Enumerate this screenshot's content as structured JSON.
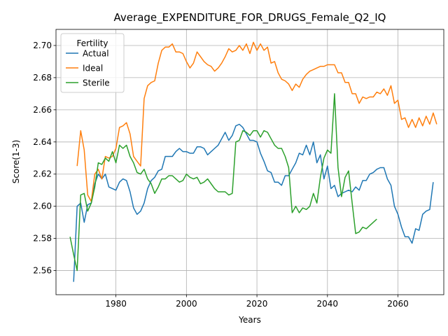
{
  "chart_data": {
    "type": "line",
    "title": "Average_EXPENDITURE_FOR_DRUGS_Female_Q2_IQ",
    "xlabel": "Years",
    "ylabel": "Score(1-3)",
    "xlim": [
      1963,
      2073
    ],
    "ylim": [
      2.545,
      2.71
    ],
    "x_ticks": [
      1980,
      2000,
      2020,
      2040,
      2060
    ],
    "y_ticks": [
      2.56,
      2.58,
      2.6,
      2.62,
      2.64,
      2.66,
      2.68,
      2.7
    ],
    "grid": true,
    "legend": {
      "title": "Fertility",
      "placement": "upper-left"
    },
    "series": [
      {
        "name": "Actual",
        "color": "#1f77b4",
        "points": [
          [
            1968,
            2.553
          ],
          [
            1969,
            2.6
          ],
          [
            1970,
            2.602
          ],
          [
            1971,
            2.59
          ],
          [
            1972,
            2.601
          ],
          [
            1973,
            2.602
          ],
          [
            1974,
            2.614
          ],
          [
            1975,
            2.62
          ],
          [
            1976,
            2.617
          ],
          [
            1977,
            2.62
          ],
          [
            1978,
            2.612
          ],
          [
            1979,
            2.611
          ],
          [
            1980,
            2.61
          ],
          [
            1981,
            2.615
          ],
          [
            1982,
            2.617
          ],
          [
            1983,
            2.616
          ],
          [
            1984,
            2.609
          ],
          [
            1985,
            2.599
          ],
          [
            1986,
            2.595
          ],
          [
            1987,
            2.597
          ],
          [
            1988,
            2.602
          ],
          [
            1989,
            2.611
          ],
          [
            1990,
            2.616
          ],
          [
            1991,
            2.618
          ],
          [
            1992,
            2.622
          ],
          [
            1993,
            2.623
          ],
          [
            1994,
            2.631
          ],
          [
            1995,
            2.631
          ],
          [
            1996,
            2.631
          ],
          [
            1997,
            2.634
          ],
          [
            1998,
            2.636
          ],
          [
            1999,
            2.634
          ],
          [
            2000,
            2.634
          ],
          [
            2001,
            2.633
          ],
          [
            2002,
            2.633
          ],
          [
            2003,
            2.637
          ],
          [
            2004,
            2.637
          ],
          [
            2005,
            2.636
          ],
          [
            2006,
            2.632
          ],
          [
            2007,
            2.634
          ],
          [
            2008,
            2.636
          ],
          [
            2009,
            2.638
          ],
          [
            2010,
            2.642
          ],
          [
            2011,
            2.646
          ],
          [
            2012,
            2.641
          ],
          [
            2013,
            2.644
          ],
          [
            2014,
            2.65
          ],
          [
            2015,
            2.651
          ],
          [
            2016,
            2.649
          ],
          [
            2017,
            2.645
          ],
          [
            2018,
            2.641
          ],
          [
            2019,
            2.641
          ],
          [
            2020,
            2.64
          ],
          [
            2021,
            2.633
          ],
          [
            2022,
            2.628
          ],
          [
            2023,
            2.622
          ],
          [
            2024,
            2.621
          ],
          [
            2025,
            2.615
          ],
          [
            2026,
            2.615
          ],
          [
            2027,
            2.613
          ],
          [
            2028,
            2.619
          ],
          [
            2029,
            2.619
          ],
          [
            2030,
            2.623
          ],
          [
            2031,
            2.627
          ],
          [
            2032,
            2.633
          ],
          [
            2033,
            2.632
          ],
          [
            2034,
            2.638
          ],
          [
            2035,
            2.632
          ],
          [
            2036,
            2.64
          ],
          [
            2037,
            2.627
          ],
          [
            2038,
            2.632
          ],
          [
            2039,
            2.617
          ],
          [
            2040,
            2.625
          ],
          [
            2041,
            2.611
          ],
          [
            2042,
            2.613
          ],
          [
            2043,
            2.606
          ],
          [
            2044,
            2.608
          ],
          [
            2045,
            2.609
          ],
          [
            2046,
            2.61
          ],
          [
            2047,
            2.609
          ],
          [
            2048,
            2.612
          ],
          [
            2049,
            2.61
          ],
          [
            2050,
            2.616
          ],
          [
            2051,
            2.616
          ],
          [
            2052,
            2.62
          ],
          [
            2053,
            2.621
          ],
          [
            2054,
            2.623
          ],
          [
            2055,
            2.624
          ],
          [
            2056,
            2.624
          ],
          [
            2057,
            2.617
          ],
          [
            2058,
            2.613
          ],
          [
            2059,
            2.6
          ],
          [
            2060,
            2.595
          ],
          [
            2061,
            2.587
          ],
          [
            2062,
            2.581
          ],
          [
            2063,
            2.581
          ],
          [
            2064,
            2.577
          ],
          [
            2065,
            2.586
          ],
          [
            2066,
            2.585
          ],
          [
            2067,
            2.595
          ],
          [
            2068,
            2.597
          ],
          [
            2069,
            2.598
          ],
          [
            2070,
            2.615
          ]
        ]
      },
      {
        "name": "Ideal",
        "color": "#ff7f0e",
        "points": [
          [
            1969,
            2.625
          ],
          [
            1970,
            2.647
          ],
          [
            1971,
            2.635
          ],
          [
            1972,
            2.607
          ],
          [
            1973,
            2.603
          ],
          [
            1974,
            2.62
          ],
          [
            1975,
            2.623
          ],
          [
            1976,
            2.617
          ],
          [
            1977,
            2.631
          ],
          [
            1978,
            2.63
          ],
          [
            1979,
            2.631
          ],
          [
            1980,
            2.636
          ],
          [
            1981,
            2.649
          ],
          [
            1982,
            2.65
          ],
          [
            1983,
            2.652
          ],
          [
            1984,
            2.645
          ],
          [
            1985,
            2.631
          ],
          [
            1986,
            2.628
          ],
          [
            1987,
            2.625
          ],
          [
            1988,
            2.667
          ],
          [
            1989,
            2.675
          ],
          [
            1990,
            2.677
          ],
          [
            1991,
            2.678
          ],
          [
            1992,
            2.689
          ],
          [
            1993,
            2.697
          ],
          [
            1994,
            2.699
          ],
          [
            1995,
            2.699
          ],
          [
            1996,
            2.701
          ],
          [
            1997,
            2.696
          ],
          [
            1998,
            2.696
          ],
          [
            1999,
            2.695
          ],
          [
            2000,
            2.69
          ],
          [
            2001,
            2.686
          ],
          [
            2002,
            2.689
          ],
          [
            2003,
            2.696
          ],
          [
            2004,
            2.693
          ],
          [
            2005,
            2.69
          ],
          [
            2006,
            2.688
          ],
          [
            2007,
            2.687
          ],
          [
            2008,
            2.684
          ],
          [
            2009,
            2.686
          ],
          [
            2010,
            2.689
          ],
          [
            2011,
            2.693
          ],
          [
            2012,
            2.698
          ],
          [
            2013,
            2.696
          ],
          [
            2014,
            2.697
          ],
          [
            2015,
            2.7
          ],
          [
            2016,
            2.697
          ],
          [
            2017,
            2.701
          ],
          [
            2018,
            2.695
          ],
          [
            2019,
            2.702
          ],
          [
            2020,
            2.697
          ],
          [
            2021,
            2.701
          ],
          [
            2022,
            2.697
          ],
          [
            2023,
            2.699
          ],
          [
            2024,
            2.689
          ],
          [
            2025,
            2.69
          ],
          [
            2026,
            2.683
          ],
          [
            2027,
            2.679
          ],
          [
            2028,
            2.678
          ],
          [
            2029,
            2.676
          ],
          [
            2030,
            2.672
          ],
          [
            2031,
            2.676
          ],
          [
            2032,
            2.674
          ],
          [
            2033,
            2.679
          ],
          [
            2034,
            2.682
          ],
          [
            2035,
            2.684
          ],
          [
            2036,
            2.685
          ],
          [
            2037,
            2.686
          ],
          [
            2038,
            2.687
          ],
          [
            2039,
            2.687
          ],
          [
            2040,
            2.688
          ],
          [
            2041,
            2.688
          ],
          [
            2042,
            2.688
          ],
          [
            2043,
            2.683
          ],
          [
            2044,
            2.683
          ],
          [
            2045,
            2.677
          ],
          [
            2046,
            2.677
          ],
          [
            2047,
            2.67
          ],
          [
            2048,
            2.67
          ],
          [
            2049,
            2.664
          ],
          [
            2050,
            2.668
          ],
          [
            2051,
            2.667
          ],
          [
            2052,
            2.668
          ],
          [
            2053,
            2.668
          ],
          [
            2054,
            2.671
          ],
          [
            2055,
            2.67
          ],
          [
            2056,
            2.673
          ],
          [
            2057,
            2.669
          ],
          [
            2058,
            2.675
          ],
          [
            2059,
            2.664
          ],
          [
            2060,
            2.666
          ],
          [
            2061,
            2.654
          ],
          [
            2062,
            2.655
          ],
          [
            2063,
            2.649
          ],
          [
            2064,
            2.654
          ],
          [
            2065,
            2.649
          ],
          [
            2066,
            2.655
          ],
          [
            2067,
            2.65
          ],
          [
            2068,
            2.656
          ],
          [
            2069,
            2.651
          ],
          [
            2070,
            2.658
          ],
          [
            2071,
            2.651
          ]
        ]
      },
      {
        "name": "Sterile",
        "color": "#2ca02c",
        "points": [
          [
            1967,
            2.581
          ],
          [
            1968,
            2.57
          ],
          [
            1969,
            2.56
          ],
          [
            1970,
            2.607
          ],
          [
            1971,
            2.608
          ],
          [
            1972,
            2.597
          ],
          [
            1973,
            2.602
          ],
          [
            1974,
            2.612
          ],
          [
            1975,
            2.627
          ],
          [
            1976,
            2.626
          ],
          [
            1977,
            2.63
          ],
          [
            1978,
            2.628
          ],
          [
            1979,
            2.634
          ],
          [
            1980,
            2.627
          ],
          [
            1981,
            2.638
          ],
          [
            1982,
            2.636
          ],
          [
            1983,
            2.638
          ],
          [
            1984,
            2.631
          ],
          [
            1985,
            2.627
          ],
          [
            1986,
            2.621
          ],
          [
            1987,
            2.62
          ],
          [
            1988,
            2.623
          ],
          [
            1989,
            2.617
          ],
          [
            1990,
            2.614
          ],
          [
            1991,
            2.608
          ],
          [
            1992,
            2.612
          ],
          [
            1993,
            2.617
          ],
          [
            1994,
            2.617
          ],
          [
            1995,
            2.619
          ],
          [
            1996,
            2.619
          ],
          [
            1997,
            2.617
          ],
          [
            1998,
            2.615
          ],
          [
            1999,
            2.616
          ],
          [
            2000,
            2.62
          ],
          [
            2001,
            2.618
          ],
          [
            2002,
            2.617
          ],
          [
            2003,
            2.618
          ],
          [
            2004,
            2.614
          ],
          [
            2005,
            2.615
          ],
          [
            2006,
            2.617
          ],
          [
            2007,
            2.614
          ],
          [
            2008,
            2.611
          ],
          [
            2009,
            2.609
          ],
          [
            2010,
            2.609
          ],
          [
            2011,
            2.609
          ],
          [
            2012,
            2.607
          ],
          [
            2013,
            2.608
          ],
          [
            2014,
            2.64
          ],
          [
            2015,
            2.641
          ],
          [
            2016,
            2.647
          ],
          [
            2017,
            2.646
          ],
          [
            2018,
            2.644
          ],
          [
            2019,
            2.647
          ],
          [
            2020,
            2.647
          ],
          [
            2021,
            2.643
          ],
          [
            2022,
            2.647
          ],
          [
            2023,
            2.646
          ],
          [
            2024,
            2.642
          ],
          [
            2025,
            2.638
          ],
          [
            2026,
            2.636
          ],
          [
            2027,
            2.636
          ],
          [
            2028,
            2.631
          ],
          [
            2029,
            2.624
          ],
          [
            2030,
            2.596
          ],
          [
            2031,
            2.6
          ],
          [
            2032,
            2.596
          ],
          [
            2033,
            2.599
          ],
          [
            2034,
            2.598
          ],
          [
            2035,
            2.6
          ],
          [
            2036,
            2.608
          ],
          [
            2037,
            2.602
          ],
          [
            2038,
            2.618
          ],
          [
            2039,
            2.63
          ],
          [
            2040,
            2.635
          ],
          [
            2041,
            2.633
          ],
          [
            2042,
            2.67
          ],
          [
            2043,
            2.624
          ],
          [
            2044,
            2.606
          ],
          [
            2045,
            2.618
          ],
          [
            2046,
            2.622
          ],
          [
            2047,
            2.602
          ],
          [
            2048,
            2.583
          ],
          [
            2049,
            2.584
          ],
          [
            2050,
            2.587
          ],
          [
            2051,
            2.586
          ],
          [
            2052,
            2.588
          ],
          [
            2053,
            2.59
          ],
          [
            2054,
            2.592
          ]
        ]
      }
    ]
  }
}
